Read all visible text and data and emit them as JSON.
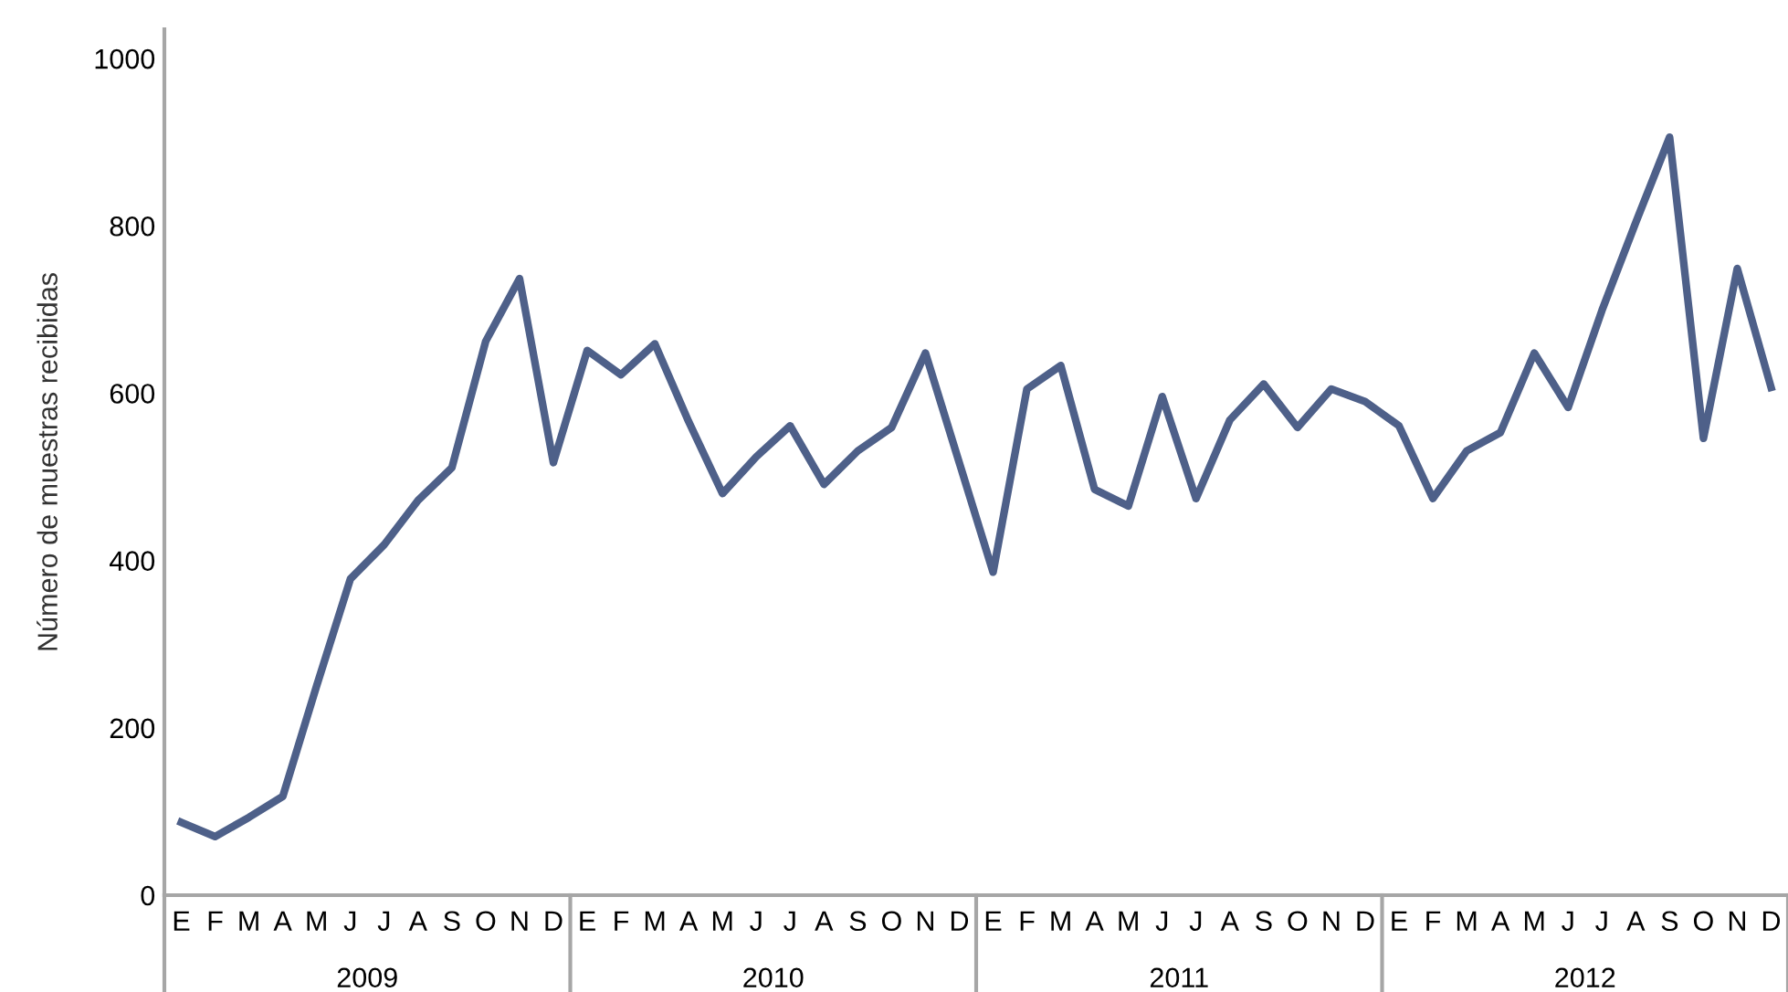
{
  "chart_data": {
    "type": "line",
    "ylabel": "Número de muestras recibidas",
    "categories": [
      "E",
      "F",
      "M",
      "A",
      "M",
      "J",
      "J",
      "A",
      "S",
      "O",
      "N",
      "D",
      "E",
      "F",
      "M",
      "A",
      "M",
      "J",
      "J",
      "A",
      "S",
      "O",
      "N",
      "D",
      "E",
      "F",
      "M",
      "A",
      "M",
      "J",
      "J",
      "A",
      "S",
      "O",
      "N",
      "D",
      "E",
      "F",
      "M",
      "A",
      "M",
      "J",
      "J",
      "A",
      "S",
      "O",
      "N",
      "D"
    ],
    "series": [
      {
        "color": "#4e6089",
        "values": [
          87,
          70,
          93,
          118,
          250,
          378,
          419,
          472,
          511,
          662,
          737,
          517,
          651,
          622,
          659,
          566,
          480,
          524,
          561,
          491,
          531,
          559,
          648,
          517,
          386,
          605,
          633,
          485,
          465,
          596,
          474,
          568,
          611,
          559,
          605,
          590,
          561,
          474,
          531,
          553,
          648,
          583,
          699,
          804,
          906,
          546,
          749,
          607
        ]
      }
    ],
    "annotations": [
      "2009",
      "2010",
      "2011",
      "2012"
    ],
    "ylim": [
      0,
      1035
    ],
    "yticks": [
      0,
      200,
      400,
      600,
      800,
      1000
    ],
    "grid": false,
    "marker": "none",
    "line_style": "solid"
  }
}
